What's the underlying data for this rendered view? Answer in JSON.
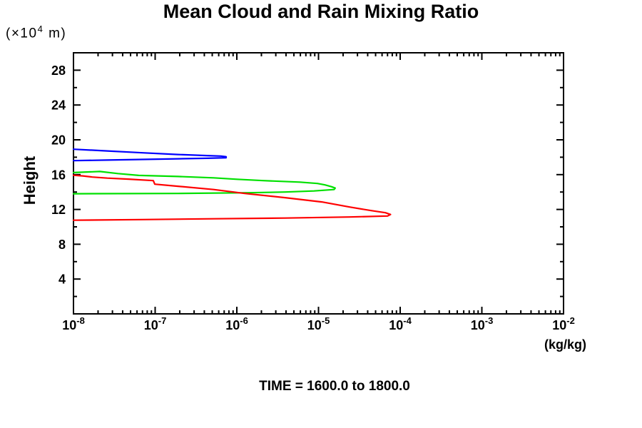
{
  "chart_data": {
    "type": "line",
    "title": "Mean Cloud and Rain Mixing Ratio",
    "caption": "TIME = 1600.0 to 1800.0",
    "x_axis": {
      "scale": "log",
      "min": 1e-08,
      "max": 0.01,
      "unit_label": "(kg/kg)",
      "tick_base": "10",
      "tick_exponents": [
        "-8",
        "-7",
        "-6",
        "-5",
        "-4",
        "-3",
        "-2"
      ]
    },
    "y_axis": {
      "min": 0,
      "max": 30,
      "label": "Height",
      "unit": {
        "pre": "(×10",
        "sup": "4",
        "post": " m)"
      },
      "major_ticks": [
        4,
        8,
        12,
        16,
        20,
        24,
        28
      ],
      "minor_ticks": [
        2,
        6,
        10,
        14,
        18,
        22,
        26
      ]
    },
    "grid": false,
    "legend": "none",
    "frame_color": "#000000",
    "series": [
      {
        "name": "blue-profile",
        "color": "#0000ff",
        "points": [
          [
            1e-08,
            18.92
          ],
          [
            2.6e-08,
            18.72
          ],
          [
            7e-08,
            18.51
          ],
          [
            1.9e-07,
            18.31
          ],
          [
            4.3e-07,
            18.19
          ],
          [
            6.4e-07,
            18.13
          ],
          [
            7.4e-07,
            18.06
          ],
          [
            7.4e-07,
            17.94
          ],
          [
            4.3e-07,
            17.88
          ],
          [
            1.9e-07,
            17.82
          ],
          [
            7e-08,
            17.75
          ],
          [
            2.6e-08,
            17.67
          ],
          [
            1e-08,
            17.61
          ]
        ]
      },
      {
        "name": "green-profile",
        "color": "#00e000",
        "points": [
          [
            1e-08,
            16.24
          ],
          [
            2.1e-08,
            16.36
          ],
          [
            3.5e-08,
            16.12
          ],
          [
            6.3e-08,
            15.91
          ],
          [
            1.9e-07,
            15.79
          ],
          [
            5.2e-07,
            15.63
          ],
          [
            1e-06,
            15.47
          ],
          [
            2.1e-06,
            15.31
          ],
          [
            5.9e-06,
            15.14
          ],
          [
            9.7e-06,
            14.98
          ],
          [
            1.2e-05,
            14.82
          ],
          [
            1.45e-05,
            14.61
          ],
          [
            1.6e-05,
            14.45
          ],
          [
            1.55e-05,
            14.29
          ],
          [
            8.8e-06,
            14.12
          ],
          [
            3.9e-06,
            14.0
          ],
          [
            1.4e-06,
            13.92
          ],
          [
            1.9e-07,
            13.84
          ],
          [
            1e-08,
            13.8
          ]
        ]
      },
      {
        "name": "red-profile",
        "color": "#ff0000",
        "points": [
          [
            1e-08,
            15.93
          ],
          [
            1.3e-08,
            15.85
          ],
          [
            1.7e-08,
            15.72
          ],
          [
            2.6e-08,
            15.6
          ],
          [
            4.7e-08,
            15.48
          ],
          [
            9.5e-08,
            15.31
          ],
          [
            9.9e-08,
            14.9
          ],
          [
            1.9e-07,
            14.66
          ],
          [
            5.2e-07,
            14.29
          ],
          [
            1.25e-06,
            13.84
          ],
          [
            3.9e-06,
            13.35
          ],
          [
            1.1e-05,
            12.86
          ],
          [
            2.4e-05,
            12.28
          ],
          [
            4.4e-05,
            11.87
          ],
          [
            6.6e-05,
            11.62
          ],
          [
            7.6e-05,
            11.42
          ],
          [
            7e-05,
            11.25
          ],
          [
            2.4e-05,
            11.13
          ],
          [
            3.9e-06,
            11.01
          ],
          [
            5.2e-07,
            10.93
          ],
          [
            7e-08,
            10.84
          ],
          [
            1e-08,
            10.76
          ]
        ]
      }
    ]
  }
}
